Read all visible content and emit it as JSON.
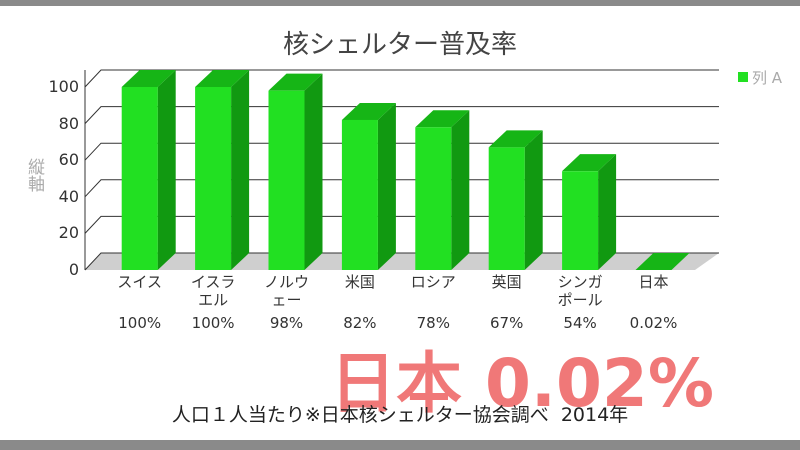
{
  "chart_data": {
    "type": "bar3d",
    "title": "核シェルター普及率",
    "y_label": "縦軸",
    "categories": [
      "スイス",
      "イスラ\nエル",
      "ノルウ\nェー",
      "米国",
      "ロシア",
      "英国",
      "シンガ\nポール",
      "日本"
    ],
    "series": [
      {
        "name": "列 A",
        "color": "#22e022",
        "values": [
          100,
          100,
          98,
          82,
          78,
          67,
          54,
          0.02
        ],
        "value_labels": [
          "100%",
          "100%",
          "98%",
          "82%",
          "78%",
          "67%",
          "54%",
          "0.02%"
        ]
      }
    ],
    "ylim": [
      0,
      100
    ],
    "yticks": [
      0,
      20,
      40,
      60,
      80,
      100
    ],
    "grid": true,
    "legend": "top-right",
    "annotation": "日本 0.02%",
    "note": "人口１人当たり※日本核シェルター協会調べ  2014年"
  }
}
